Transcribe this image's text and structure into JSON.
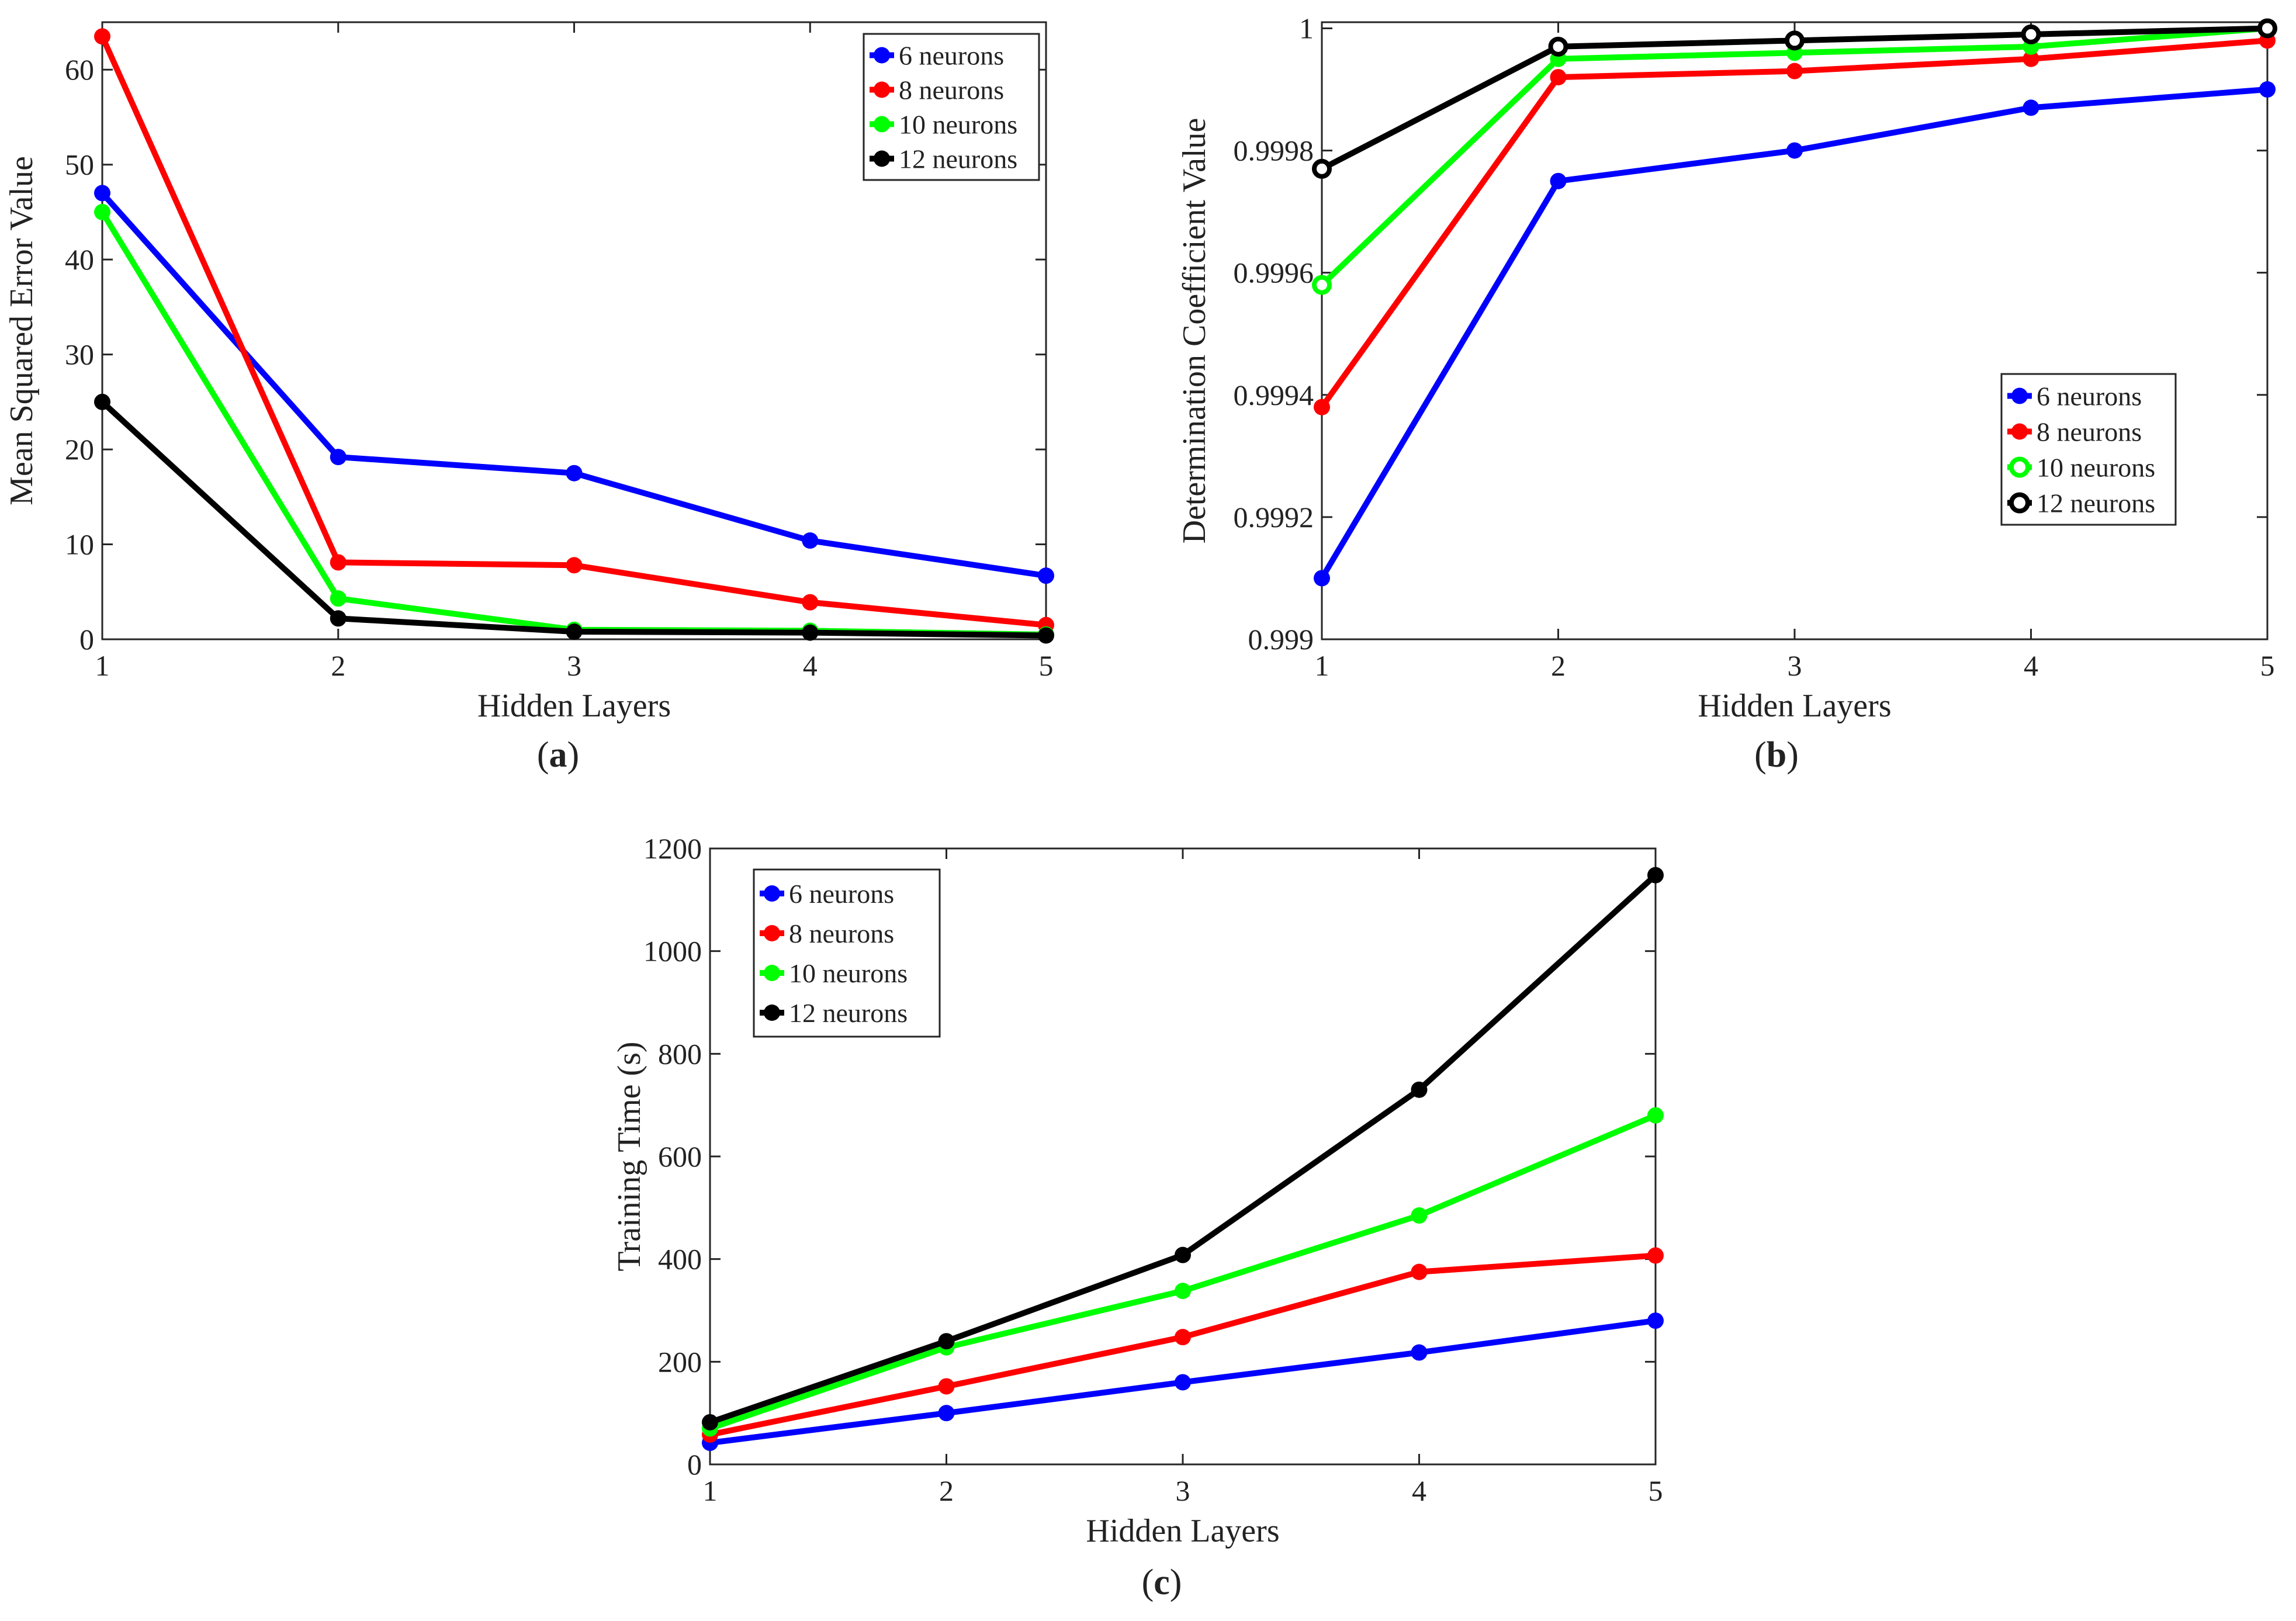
{
  "chart_data": [
    {
      "type": "line",
      "id": "a",
      "caption": "a",
      "xlabel": "Hidden Layers",
      "ylabel": "Mean Squared Error Value",
      "x": [
        1,
        2,
        3,
        4,
        5
      ],
      "xlim": [
        1,
        5
      ],
      "ylim": [
        0,
        65
      ],
      "xticks": [
        "1",
        "2",
        "3",
        "4",
        "5"
      ],
      "yticks": [
        0,
        10,
        20,
        30,
        40,
        50,
        60
      ],
      "ytick_labels": [
        "0",
        "10",
        "20",
        "30",
        "40",
        "50",
        "60"
      ],
      "legend_position": "top-right",
      "grid": false,
      "series": [
        {
          "name": "6 neurons",
          "color": "#0000ff",
          "values": [
            47.0,
            19.2,
            17.5,
            10.4,
            6.7
          ]
        },
        {
          "name": "8 neurons",
          "color": "#ff0000",
          "values": [
            63.5,
            8.1,
            7.8,
            3.9,
            1.5
          ]
        },
        {
          "name": "10 neurons",
          "color": "#00ff00",
          "values": [
            45.0,
            4.3,
            1.0,
            0.9,
            0.5
          ]
        },
        {
          "name": "12 neurons",
          "color": "#000000",
          "values": [
            25.0,
            2.2,
            0.8,
            0.7,
            0.4
          ]
        }
      ]
    },
    {
      "type": "line",
      "id": "b",
      "caption": "b",
      "xlabel": "Hidden Layers",
      "ylabel": "Determination Coefficient Value",
      "x": [
        1,
        2,
        3,
        4,
        5
      ],
      "xlim": [
        1,
        5
      ],
      "ylim": [
        0.999,
        1.00001
      ],
      "xticks": [
        "1",
        "2",
        "3",
        "4",
        "5"
      ],
      "yticks": [
        0.999,
        0.9992,
        0.9994,
        0.9996,
        0.9998,
        1
      ],
      "ytick_labels": [
        "0.999",
        "0.9992",
        "0.9994",
        "0.9996",
        "0.9998",
        "1"
      ],
      "legend_position": "center-right",
      "grid": false,
      "series": [
        {
          "name": "6 neurons",
          "color": "#0000ff",
          "values": [
            0.9991,
            0.99975,
            0.9998,
            0.99987,
            0.9999
          ]
        },
        {
          "name": "8 neurons",
          "color": "#ff0000",
          "values": [
            0.99938,
            0.99992,
            0.99993,
            0.99995,
            0.99998
          ]
        },
        {
          "name": "10 neurons",
          "color": "#00ff00",
          "values": [
            0.99958,
            0.99995,
            0.99996,
            0.99997,
            1.0
          ]
        },
        {
          "name": "12 neurons",
          "color": "#000000",
          "values": [
            0.99977,
            0.99997,
            0.99998,
            0.99999,
            1.0
          ]
        }
      ]
    },
    {
      "type": "line",
      "id": "c",
      "caption": "c",
      "xlabel": "Hidden Layers",
      "ylabel": "Training Time (s)",
      "x": [
        1,
        2,
        3,
        4,
        5
      ],
      "xlim": [
        1,
        5
      ],
      "ylim": [
        0,
        1200
      ],
      "xticks": [
        "1",
        "2",
        "3",
        "4",
        "5"
      ],
      "yticks": [
        0,
        200,
        400,
        600,
        800,
        1000,
        1200
      ],
      "ytick_labels": [
        "0",
        "200",
        "400",
        "600",
        "800",
        "1000",
        "1200"
      ],
      "legend_position": "top-left",
      "grid": false,
      "series": [
        {
          "name": "6 neurons",
          "color": "#0000ff",
          "values": [
            42,
            100,
            160,
            218,
            280
          ]
        },
        {
          "name": "8 neurons",
          "color": "#ff0000",
          "values": [
            58,
            152,
            248,
            375,
            407
          ]
        },
        {
          "name": "10 neurons",
          "color": "#00ff00",
          "values": [
            70,
            228,
            338,
            485,
            680
          ]
        },
        {
          "name": "12 neurons",
          "color": "#000000",
          "values": [
            82,
            240,
            408,
            730,
            1148
          ]
        }
      ]
    }
  ]
}
